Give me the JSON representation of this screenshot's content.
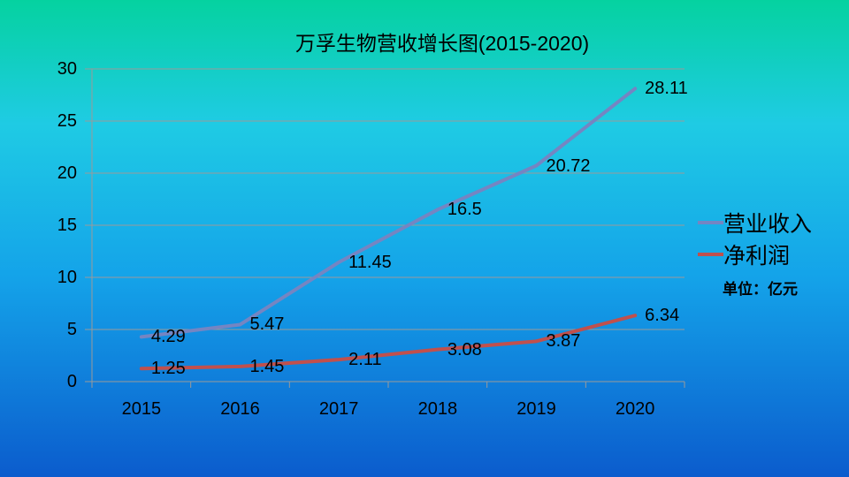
{
  "chart_data": {
    "type": "line",
    "title": "万孚生物营收增长图(2015-2020)",
    "unit_label": "单位：亿元",
    "categories": [
      "2015",
      "2016",
      "2017",
      "2018",
      "2019",
      "2020"
    ],
    "series": [
      {
        "name": "营业收入",
        "color": "#7585c2",
        "values": [
          4.29,
          5.47,
          11.45,
          16.5,
          20.72,
          28.11
        ]
      },
      {
        "name": "净利润",
        "color": "#c0504d",
        "values": [
          1.25,
          1.45,
          2.11,
          3.08,
          3.87,
          6.34
        ]
      }
    ],
    "xlabel": "",
    "ylabel": "",
    "ylim": [
      0,
      30
    ],
    "yticks": [
      0,
      5,
      10,
      15,
      20,
      25,
      30
    ],
    "grid": true,
    "legend_position": "right",
    "colors": {
      "grid": "#9a9a9a",
      "text": "#000000",
      "background_gradient": [
        "#05d2a0",
        "#1fcbe4",
        "#14a3e9",
        "#0b5ccd"
      ]
    }
  }
}
